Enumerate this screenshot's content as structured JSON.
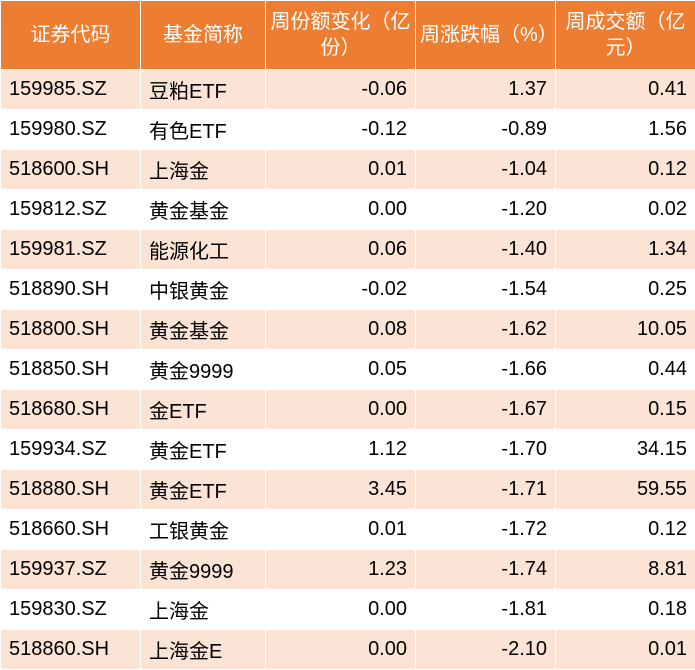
{
  "table": {
    "header_bg": "#ed7d31",
    "header_fg": "#ffffff",
    "row_odd_bg": "#fbe4d5",
    "row_even_bg": "#ffffff",
    "text_color": "#000000",
    "font_size": 20,
    "columns": [
      {
        "key": "code",
        "label": "证券代码",
        "align": "left",
        "width": 140
      },
      {
        "key": "name",
        "label": "基金简称",
        "align": "left",
        "width": 125
      },
      {
        "key": "share_change",
        "label": "周份额变化（亿份）",
        "align": "right",
        "width": 150
      },
      {
        "key": "pct_change",
        "label": "周涨跌幅（%）",
        "align": "right",
        "width": 140
      },
      {
        "key": "turnover",
        "label": "周成交额（亿元）",
        "align": "right",
        "width": 140
      }
    ],
    "rows": [
      {
        "code": "159985.SZ",
        "name": "豆粕ETF",
        "share_change": "-0.06",
        "pct_change": "1.37",
        "turnover": "0.41"
      },
      {
        "code": "159980.SZ",
        "name": "有色ETF",
        "share_change": "-0.12",
        "pct_change": "-0.89",
        "turnover": "1.56"
      },
      {
        "code": "518600.SH",
        "name": "上海金",
        "share_change": "0.01",
        "pct_change": "-1.04",
        "turnover": "0.12"
      },
      {
        "code": "159812.SZ",
        "name": "黄金基金",
        "share_change": "0.00",
        "pct_change": "-1.20",
        "turnover": "0.02"
      },
      {
        "code": "159981.SZ",
        "name": "能源化工",
        "share_change": "0.06",
        "pct_change": "-1.40",
        "turnover": "1.34"
      },
      {
        "code": "518890.SH",
        "name": "中银黄金",
        "share_change": "-0.02",
        "pct_change": "-1.54",
        "turnover": "0.25"
      },
      {
        "code": "518800.SH",
        "name": "黄金基金",
        "share_change": "0.08",
        "pct_change": "-1.62",
        "turnover": "10.05"
      },
      {
        "code": "518850.SH",
        "name": "黄金9999",
        "share_change": "0.05",
        "pct_change": "-1.66",
        "turnover": "0.44"
      },
      {
        "code": "518680.SH",
        "name": "金ETF",
        "share_change": "0.00",
        "pct_change": "-1.67",
        "turnover": "0.15"
      },
      {
        "code": "159934.SZ",
        "name": "黄金ETF",
        "share_change": "1.12",
        "pct_change": "-1.70",
        "turnover": "34.15"
      },
      {
        "code": "518880.SH",
        "name": "黄金ETF",
        "share_change": "3.45",
        "pct_change": "-1.71",
        "turnover": "59.55"
      },
      {
        "code": "518660.SH",
        "name": "工银黄金",
        "share_change": "0.01",
        "pct_change": "-1.72",
        "turnover": "0.12"
      },
      {
        "code": "159937.SZ",
        "name": "黄金9999",
        "share_change": "1.23",
        "pct_change": "-1.74",
        "turnover": "8.81"
      },
      {
        "code": "159830.SZ",
        "name": "上海金",
        "share_change": "0.00",
        "pct_change": "-1.81",
        "turnover": "0.18"
      },
      {
        "code": "518860.SH",
        "name": "上海金E",
        "share_change": "0.00",
        "pct_change": "-2.10",
        "turnover": "0.01"
      }
    ]
  }
}
